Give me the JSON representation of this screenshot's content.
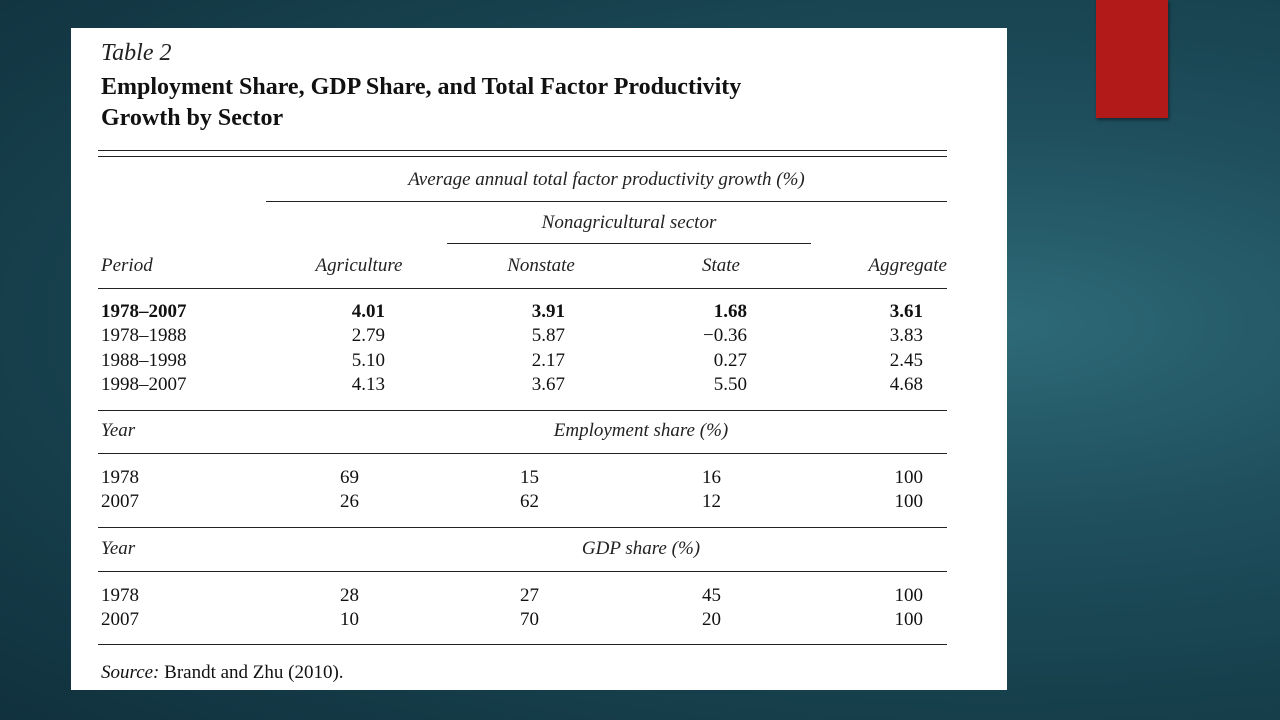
{
  "table": {
    "number": "Table 2",
    "title_line1": "Employment Share, GDP Share, and Total Factor Productivity",
    "title_line2": "Growth by Sector",
    "spanner": "Average annual total factor productivity growth (%)",
    "subspanner": "Nonagricultural sector",
    "columns": {
      "period": "Period",
      "agriculture": "Agriculture",
      "nonstate": "Nonstate",
      "state": "State",
      "aggregate": "Aggregate"
    },
    "tfp_rows": [
      {
        "period": "1978–2007",
        "agriculture": "4.01",
        "nonstate": "3.91",
        "state": "1.68",
        "aggregate": "3.61",
        "bold": true
      },
      {
        "period": "1978–1988",
        "agriculture": "2.79",
        "nonstate": "5.87",
        "state": "−0.36",
        "aggregate": "3.83",
        "bold": false
      },
      {
        "period": "1988–1998",
        "agriculture": "5.10",
        "nonstate": "2.17",
        "state": "0.27",
        "aggregate": "2.45",
        "bold": false
      },
      {
        "period": "1998–2007",
        "agriculture": "4.13",
        "nonstate": "3.67",
        "state": "5.50",
        "aggregate": "4.68",
        "bold": false
      }
    ],
    "employment": {
      "year_label": "Year",
      "heading": "Employment share (%)",
      "rows": [
        {
          "year": "1978",
          "agriculture": "69",
          "nonstate": "15",
          "state": "16",
          "aggregate": "100"
        },
        {
          "year": "2007",
          "agriculture": "26",
          "nonstate": "62",
          "state": "12",
          "aggregate": "100"
        }
      ]
    },
    "gdp": {
      "year_label": "Year",
      "heading": "GDP share (%)",
      "rows": [
        {
          "year": "1978",
          "agriculture": "28",
          "nonstate": "27",
          "state": "45",
          "aggregate": "100"
        },
        {
          "year": "2007",
          "agriculture": "10",
          "nonstate": "70",
          "state": "20",
          "aggregate": "100"
        }
      ]
    },
    "source_label": "Source:",
    "source_text": " Brandt and Zhu (2010)."
  },
  "colors": {
    "accent": "#b11a18",
    "background": "#1f4f5d"
  }
}
